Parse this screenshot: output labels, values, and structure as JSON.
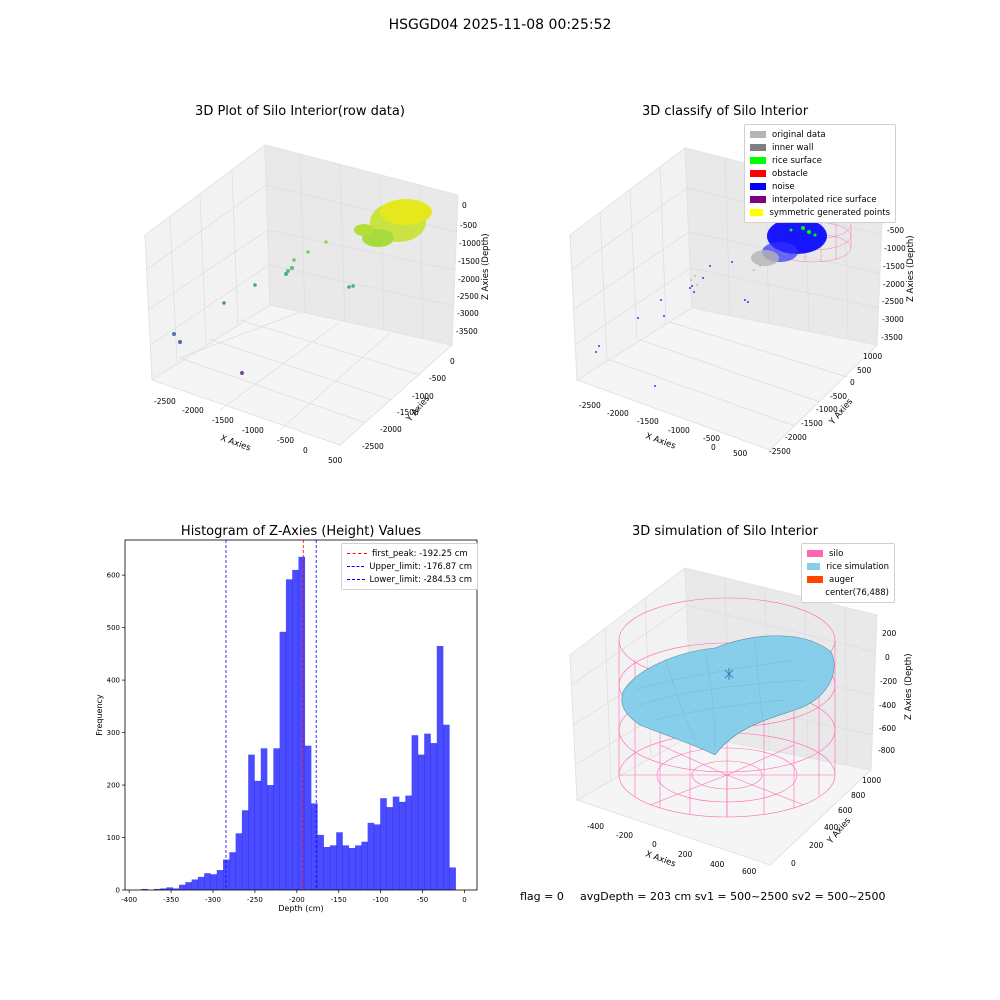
{
  "suptitle": "HSGGD04 2025-11-08 00:25:52",
  "footer": {
    "flag": "flag = 0",
    "stats": "avgDepth = 203 cm  sv1 = 500~2500  sv2 = 500~2500"
  },
  "chart_data": [
    {
      "type": "scatter",
      "title": "3D Plot of Silo Interior(row data)",
      "xlabel": "X Axies",
      "ylabel": "Y Axies",
      "zlabel": "Z Axies (Depth)",
      "x_ticks": [
        "-2500",
        "-2000",
        "-1500",
        "-1000",
        "-500",
        "0",
        "500"
      ],
      "y_ticks": [
        "0",
        "-500",
        "-1000",
        "-1500",
        "-2000",
        "-2500"
      ],
      "z_ticks": [
        "0",
        "-500",
        "-1000",
        "-1500",
        "-2000",
        "-2500",
        "-3000",
        "-3500"
      ],
      "colormap": "viridis (depth)"
    },
    {
      "type": "scatter",
      "title": "3D classify of Silo Interior",
      "xlabel": "X Axies",
      "ylabel": "Y Axies",
      "zlabel": "Z Axies (Depth)",
      "x_ticks": [
        "-2500",
        "-2000",
        "-1500",
        "-1000",
        "-500",
        "0",
        "500"
      ],
      "y_ticks": [
        "1000",
        "500",
        "0",
        "-500",
        "-1000",
        "-1500",
        "-2000",
        "-2500"
      ],
      "z_ticks": [
        "0",
        "-500",
        "-1000",
        "-1500",
        "-2000",
        "-2500",
        "-3000",
        "-3500"
      ],
      "legend": [
        {
          "label": "original data",
          "color": "#b4b4b4"
        },
        {
          "label": "inner wall",
          "color": "#808080"
        },
        {
          "label": "rice surface",
          "color": "#00ff00"
        },
        {
          "label": "obstacle",
          "color": "#ff0000"
        },
        {
          "label": "noise",
          "color": "#0000ff"
        },
        {
          "label": "interpolated rice surface",
          "color": "#800080"
        },
        {
          "label": "symmetric generated points",
          "color": "#ffff00"
        }
      ]
    },
    {
      "type": "bar",
      "title": "Histogram of Z-Axies (Height) Values",
      "xlabel": "Depth (cm)",
      "ylabel": "Frequency",
      "xlim": [
        -405,
        15
      ],
      "ylim": [
        0,
        667
      ],
      "x_ticks": [
        -400,
        -350,
        -300,
        -250,
        -200,
        -150,
        -100,
        -50,
        0
      ],
      "y_ticks": [
        0,
        100,
        200,
        300,
        400,
        500,
        600
      ],
      "bar_color": "#0000ff",
      "bin_width": 7.5,
      "bins_start": [
        -393,
        -385.5,
        -378,
        -370.5,
        -363,
        -355.5,
        -348,
        -340.5,
        -333,
        -325.5,
        -318,
        -310.5,
        -303,
        -295.5,
        -288,
        -280.5,
        -273,
        -265.5,
        -258,
        -250.5,
        -243,
        -235.5,
        -228,
        -220.5,
        -213,
        -205.5,
        -198,
        -190.5,
        -183,
        -175.5,
        -168,
        -160.5,
        -153,
        -145.5,
        -138,
        -130.5,
        -123,
        -115.5,
        -108,
        -100.5,
        -93,
        -85.5,
        -78,
        -70.5,
        -63,
        -55.5,
        -48,
        -40.5,
        -33,
        -25.5,
        -18,
        -10.5,
        -3
      ],
      "values": [
        0,
        2,
        0,
        2,
        3,
        5,
        3,
        10,
        15,
        20,
        25,
        32,
        30,
        38,
        58,
        72,
        108,
        152,
        258,
        208,
        270,
        200,
        270,
        492,
        592,
        610,
        635,
        275,
        165,
        105,
        82,
        85,
        110,
        85,
        80,
        85,
        92,
        128,
        125,
        175,
        158,
        178,
        168,
        180,
        295,
        258,
        298,
        280,
        465,
        315,
        43,
        0,
        0
      ],
      "vlines": [
        {
          "x": -192.25,
          "color": "#ff0000",
          "label": "first_peak: -192.25 cm"
        },
        {
          "x": -176.87,
          "color": "#0000ff",
          "label": "Upper_limit: -176.87 cm"
        },
        {
          "x": -284.53,
          "color": "#0000ff",
          "label": "Lower_limit: -284.53 cm"
        }
      ]
    },
    {
      "type": "table",
      "title": "3D simulation of Silo Interior",
      "xlabel": "X Axies",
      "ylabel": "Y Axies",
      "zlabel": "Z Axies (Depth)",
      "x_ticks": [
        "-400",
        "-200",
        "0",
        "200",
        "400",
        "600"
      ],
      "y_ticks": [
        "0",
        "200",
        "400",
        "600",
        "800",
        "1000"
      ],
      "z_ticks": [
        "200",
        "0",
        "-200",
        "-400",
        "-600",
        "-800"
      ],
      "legend": [
        {
          "label": "silo",
          "color": "#ff69b4"
        },
        {
          "label": "rice simulation",
          "color": "#87ceeb"
        },
        {
          "label": "auger",
          "color": "#ff4500"
        },
        {
          "label": "center(76,488)",
          "color": ""
        }
      ]
    }
  ]
}
